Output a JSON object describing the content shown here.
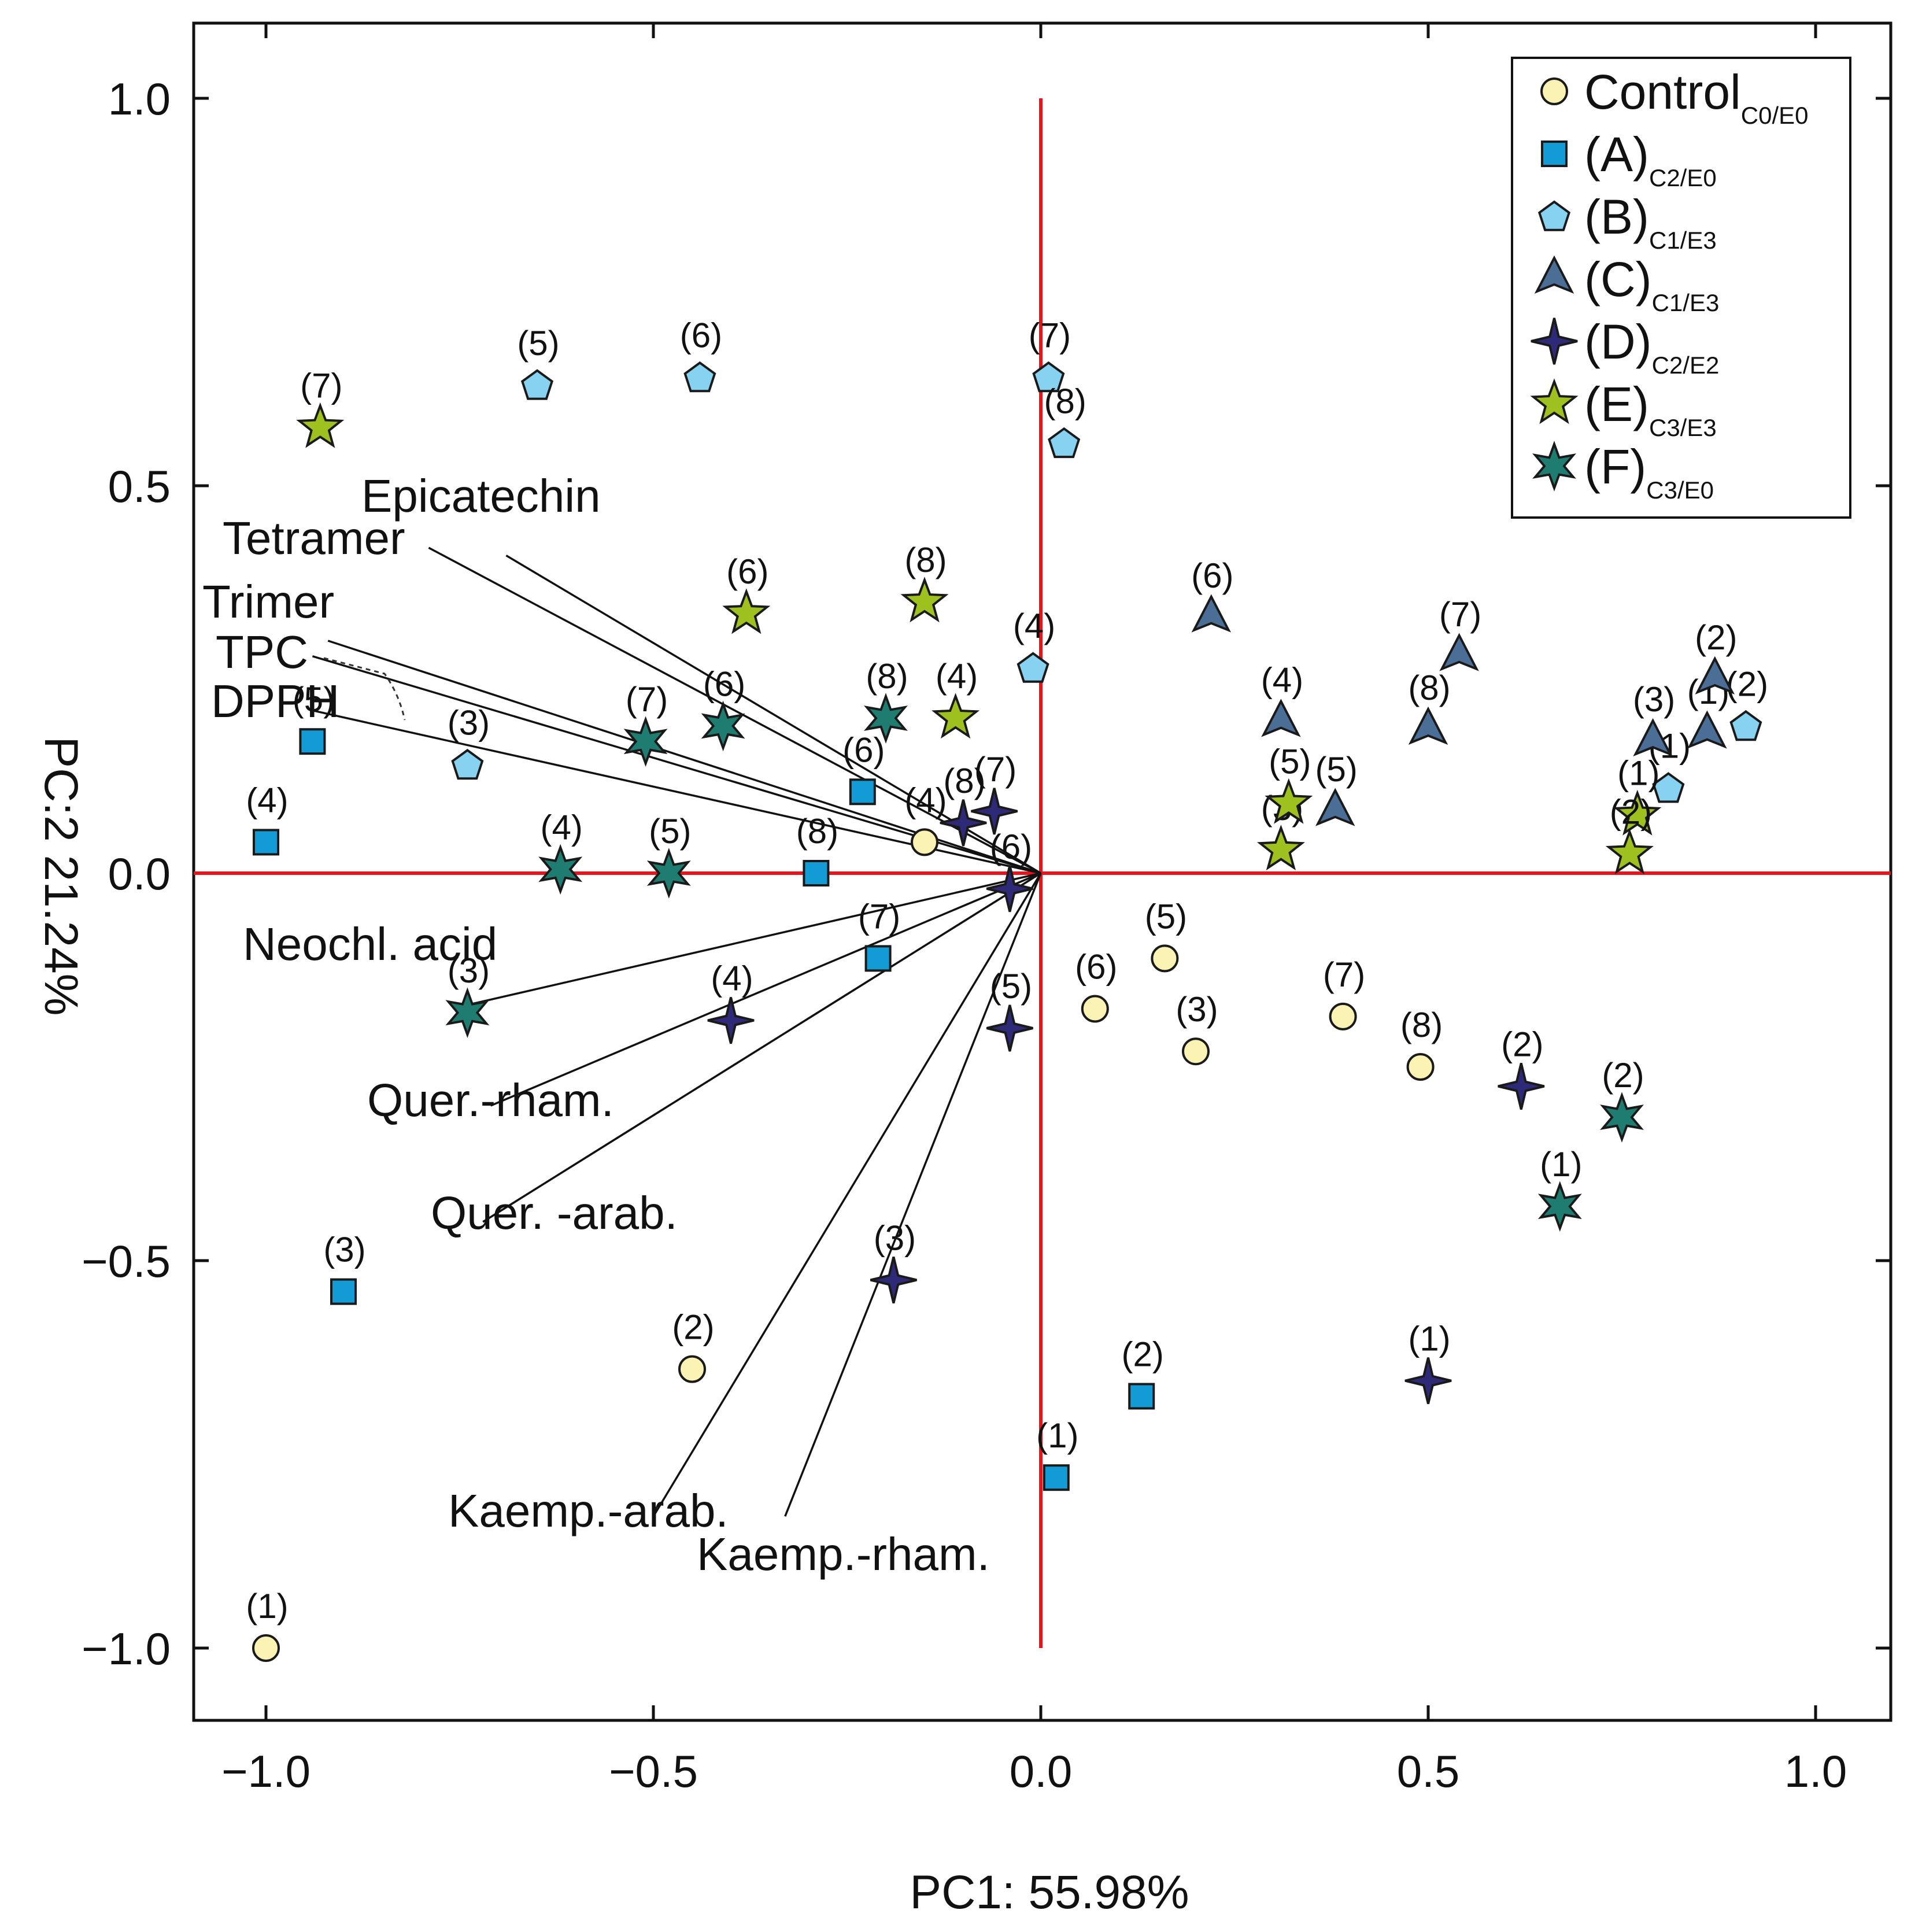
{
  "chart_data": {
    "type": "scatter",
    "title": "",
    "xlabel": "PC1: 55.98%",
    "ylabel": "PC:2 21.24%",
    "xlim": [
      -1.1,
      1.1
    ],
    "ylim": [
      -1.1,
      1.1
    ],
    "xticks": [
      -1.0,
      -0.5,
      0.0,
      0.5,
      1.0
    ],
    "yticks": [
      -1.0,
      -0.5,
      0.0,
      0.5,
      1.0
    ],
    "xtick_labels": [
      "−1.0",
      "−0.5",
      "0.0",
      "0.5",
      "1.0"
    ],
    "ytick_labels": [
      "−1.0",
      "−0.5",
      "0.0",
      "0.5",
      "1.0"
    ],
    "grid": false,
    "reference_lines": {
      "x": 0,
      "y": 0,
      "color": "#e8141b"
    },
    "legend_position": "top-right",
    "series": [
      {
        "name": "Control",
        "sub": "C0/E0",
        "marker": "circle",
        "color": "#fbf3b3",
        "points": [
          {
            "label": "(1)",
            "x": -1.0,
            "y": -1.0
          },
          {
            "label": "(2)",
            "x": -0.45,
            "y": -0.64
          },
          {
            "label": "(3)",
            "x": 0.2,
            "y": -0.23
          },
          {
            "label": "(4)",
            "x": -0.15,
            "y": 0.04
          },
          {
            "label": "(5)",
            "x": 0.16,
            "y": -0.11
          },
          {
            "label": "(6)",
            "x": 0.07,
            "y": -0.175
          },
          {
            "label": "(7)",
            "x": 0.39,
            "y": -0.185
          },
          {
            "label": "(8)",
            "x": 0.49,
            "y": -0.25
          }
        ]
      },
      {
        "name": "(A)",
        "sub": "C2/E0",
        "marker": "square",
        "color": "#139bd6",
        "points": [
          {
            "label": "(1)",
            "x": 0.02,
            "y": -0.78
          },
          {
            "label": "(2)",
            "x": 0.13,
            "y": -0.675
          },
          {
            "label": "(3)",
            "x": -0.9,
            "y": -0.54
          },
          {
            "label": "(4)",
            "x": -1.0,
            "y": 0.04
          },
          {
            "label": "(5)",
            "x": -0.94,
            "y": 0.17
          },
          {
            "label": "(6)",
            "x": -0.23,
            "y": 0.105
          },
          {
            "label": "(7)",
            "x": -0.21,
            "y": -0.11
          },
          {
            "label": "(8)",
            "x": -0.29,
            "y": 0.0
          }
        ]
      },
      {
        "name": "(B)",
        "sub": "C1/E3",
        "marker": "pentagon",
        "color": "#86d2f0",
        "points": [
          {
            "label": "(1)",
            "x": 0.81,
            "y": 0.11
          },
          {
            "label": "(2)",
            "x": 0.91,
            "y": 0.19
          },
          {
            "label": "(3)",
            "x": -0.74,
            "y": 0.14
          },
          {
            "label": "(4)",
            "x": -0.01,
            "y": 0.265
          },
          {
            "label": "(5)",
            "x": -0.65,
            "y": 0.63
          },
          {
            "label": "(6)",
            "x": -0.44,
            "y": 0.64
          },
          {
            "label": "(7)",
            "x": 0.01,
            "y": 0.64
          },
          {
            "label": "(8)",
            "x": 0.03,
            "y": 0.555
          }
        ]
      },
      {
        "name": "(C)",
        "sub": "C1/E3",
        "marker": "triangle",
        "color": "#4b6e96",
        "points": [
          {
            "label": "(1)",
            "x": 0.86,
            "y": 0.18
          },
          {
            "label": "(2)",
            "x": 0.87,
            "y": 0.25
          },
          {
            "label": "(3)",
            "x": 0.79,
            "y": 0.17
          },
          {
            "label": "(4)",
            "x": 0.31,
            "y": 0.195
          },
          {
            "label": "(5)",
            "x": 0.38,
            "y": 0.08
          },
          {
            "label": "(6)",
            "x": 0.22,
            "y": 0.33
          },
          {
            "label": "(7)",
            "x": 0.54,
            "y": 0.28
          },
          {
            "label": "(8)",
            "x": 0.5,
            "y": 0.185
          }
        ]
      },
      {
        "name": "(D)",
        "sub": "C2/E2",
        "marker": "star4",
        "color": "#2e2a78",
        "points": [
          {
            "label": "(1)",
            "x": 0.5,
            "y": -0.655
          },
          {
            "label": "(2)",
            "x": 0.62,
            "y": -0.275
          },
          {
            "label": "(3)",
            "x": -0.19,
            "y": -0.525
          },
          {
            "label": "(4)",
            "x": -0.4,
            "y": -0.19
          },
          {
            "label": "(5)",
            "x": -0.04,
            "y": -0.2
          },
          {
            "label": "(6)",
            "x": -0.04,
            "y": -0.02
          },
          {
            "label": "(7)",
            "x": -0.06,
            "y": 0.08
          },
          {
            "label": "(8)",
            "x": -0.1,
            "y": 0.065
          }
        ]
      },
      {
        "name": "(E)",
        "sub": "C3/E3",
        "marker": "star5",
        "color": "#9fc11f",
        "points": [
          {
            "label": "(1)",
            "x": 0.77,
            "y": 0.075
          },
          {
            "label": "(2)",
            "x": 0.76,
            "y": 0.025
          },
          {
            "label": "(3)",
            "x": 0.31,
            "y": 0.03
          },
          {
            "label": "(4)",
            "x": -0.11,
            "y": 0.2
          },
          {
            "label": "(5)",
            "x": 0.32,
            "y": 0.09
          },
          {
            "label": "(6)",
            "x": -0.38,
            "y": 0.335
          },
          {
            "label": "(7)",
            "x": -0.93,
            "y": 0.575
          },
          {
            "label": "(8)",
            "x": -0.15,
            "y": 0.35
          }
        ]
      },
      {
        "name": "(F)",
        "sub": "C3/E0",
        "marker": "star6",
        "color": "#1e7c70",
        "points": [
          {
            "label": "(1)",
            "x": 0.67,
            "y": -0.43
          },
          {
            "label": "(2)",
            "x": 0.75,
            "y": -0.315
          },
          {
            "label": "(3)",
            "x": -0.74,
            "y": -0.18
          },
          {
            "label": "(4)",
            "x": -0.62,
            "y": 0.005
          },
          {
            "label": "(5)",
            "x": -0.48,
            "y": 0.0
          },
          {
            "label": "(6)",
            "x": -0.41,
            "y": 0.19
          },
          {
            "label": "(7)",
            "x": -0.51,
            "y": 0.17
          },
          {
            "label": "(8)",
            "x": -0.2,
            "y": 0.2
          }
        ]
      }
    ],
    "loadings": [
      {
        "name": "Epicatechin",
        "x": -0.69,
        "y": 0.41
      },
      {
        "name": "Tetramer",
        "x": -0.79,
        "y": 0.42
      },
      {
        "name": "Trimer",
        "x": -0.92,
        "y": 0.3
      },
      {
        "name": "TPC",
        "x": -0.94,
        "y": 0.28
      },
      {
        "name": "DPPH",
        "x": -0.94,
        "y": 0.21
      },
      {
        "name": "Neochl. acid",
        "x": -0.74,
        "y": -0.17
      },
      {
        "name": "Quer.-rham.",
        "x": -0.71,
        "y": -0.3
      },
      {
        "name": "Quer. -arab.",
        "x": -0.72,
        "y": -0.45
      },
      {
        "name": "Kaemp.-arab.",
        "x": -0.5,
        "y": -0.83
      },
      {
        "name": "Kaemp.-rham.",
        "x": -0.33,
        "y": -0.83
      }
    ]
  }
}
